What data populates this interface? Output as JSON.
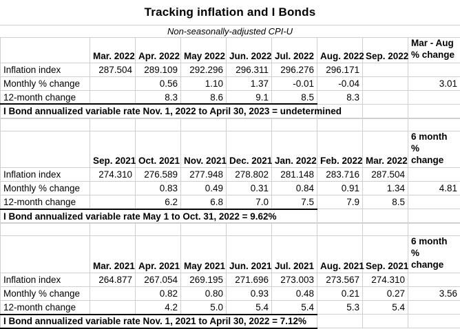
{
  "title": "Tracking inflation and I Bonds",
  "subtitle": "Non-seasonally-adjusted CPI-U",
  "tables": [
    {
      "columns": [
        "Mar. 2022",
        "Apr. 2022",
        "May 2022",
        "Jun. 2022",
        "Jul. 2022",
        "Aug. 2022",
        "Sep. 2022"
      ],
      "summary_header": "Mar - Aug\n% change",
      "rows": [
        {
          "label": "Inflation index",
          "values": [
            "287.504",
            "289.109",
            "292.296",
            "296.311",
            "296.276",
            "296.171",
            "",
            ""
          ]
        },
        {
          "label": "Monthly % change",
          "values": [
            "",
            "0.56",
            "1.10",
            "1.37",
            "-0.01",
            "-0.04",
            "",
            "3.01"
          ]
        },
        {
          "label": "12-month change",
          "values": [
            "",
            "8.3",
            "8.6",
            "9.1",
            "8.5",
            "8.3",
            "",
            ""
          ]
        }
      ],
      "footer": "I Bond annualized variable rate Nov. 1, 2022  to April 30, 2023 = undetermined"
    },
    {
      "columns": [
        "Sep. 2021",
        "Oct. 2021",
        "Nov. 2021",
        "Dec. 2021",
        "Jan. 2022",
        "Feb. 2022",
        "Mar. 2022"
      ],
      "summary_header": "6 month %\nchange",
      "rows": [
        {
          "label": "Inflation index",
          "values": [
            "274.310",
            "276.589",
            "277.948",
            "278.802",
            "281.148",
            "283.716",
            "287.504",
            ""
          ]
        },
        {
          "label": "Monthly % change",
          "values": [
            "",
            "0.83",
            "0.49",
            "0.31",
            "0.84",
            "0.91",
            "1.34",
            "4.81"
          ]
        },
        {
          "label": "12-month change",
          "values": [
            "",
            "6.2",
            "6.8",
            "7.0",
            "7.5",
            "7.9",
            "8.5",
            ""
          ]
        }
      ],
      "footer": "I Bond annualized variable rate May 1 to Oct. 31, 2022 = 9.62%"
    },
    {
      "columns": [
        "Mar. 2021",
        "Apr. 2021",
        "May 2021",
        "Jun. 2021",
        "Jul. 2021",
        "Aug. 2021",
        "Sep. 2021"
      ],
      "summary_header": "6 month %\nchange",
      "rows": [
        {
          "label": "Inflation index",
          "values": [
            "264.877",
            "267.054",
            "269.195",
            "271.696",
            "273.003",
            "273.567",
            "274.310",
            ""
          ]
        },
        {
          "label": "Monthly % change",
          "values": [
            "",
            "0.82",
            "0.80",
            "0.93",
            "0.48",
            "0.21",
            "0.27",
            "3.56"
          ]
        },
        {
          "label": "12-month change",
          "values": [
            "",
            "4.2",
            "5.0",
            "5.4",
            "5.4",
            "5.3",
            "5.4",
            ""
          ]
        }
      ],
      "footer": "I Bond annualized variable rate Nov. 1, 2021  to April 30, 2022 = 7.12%"
    }
  ]
}
